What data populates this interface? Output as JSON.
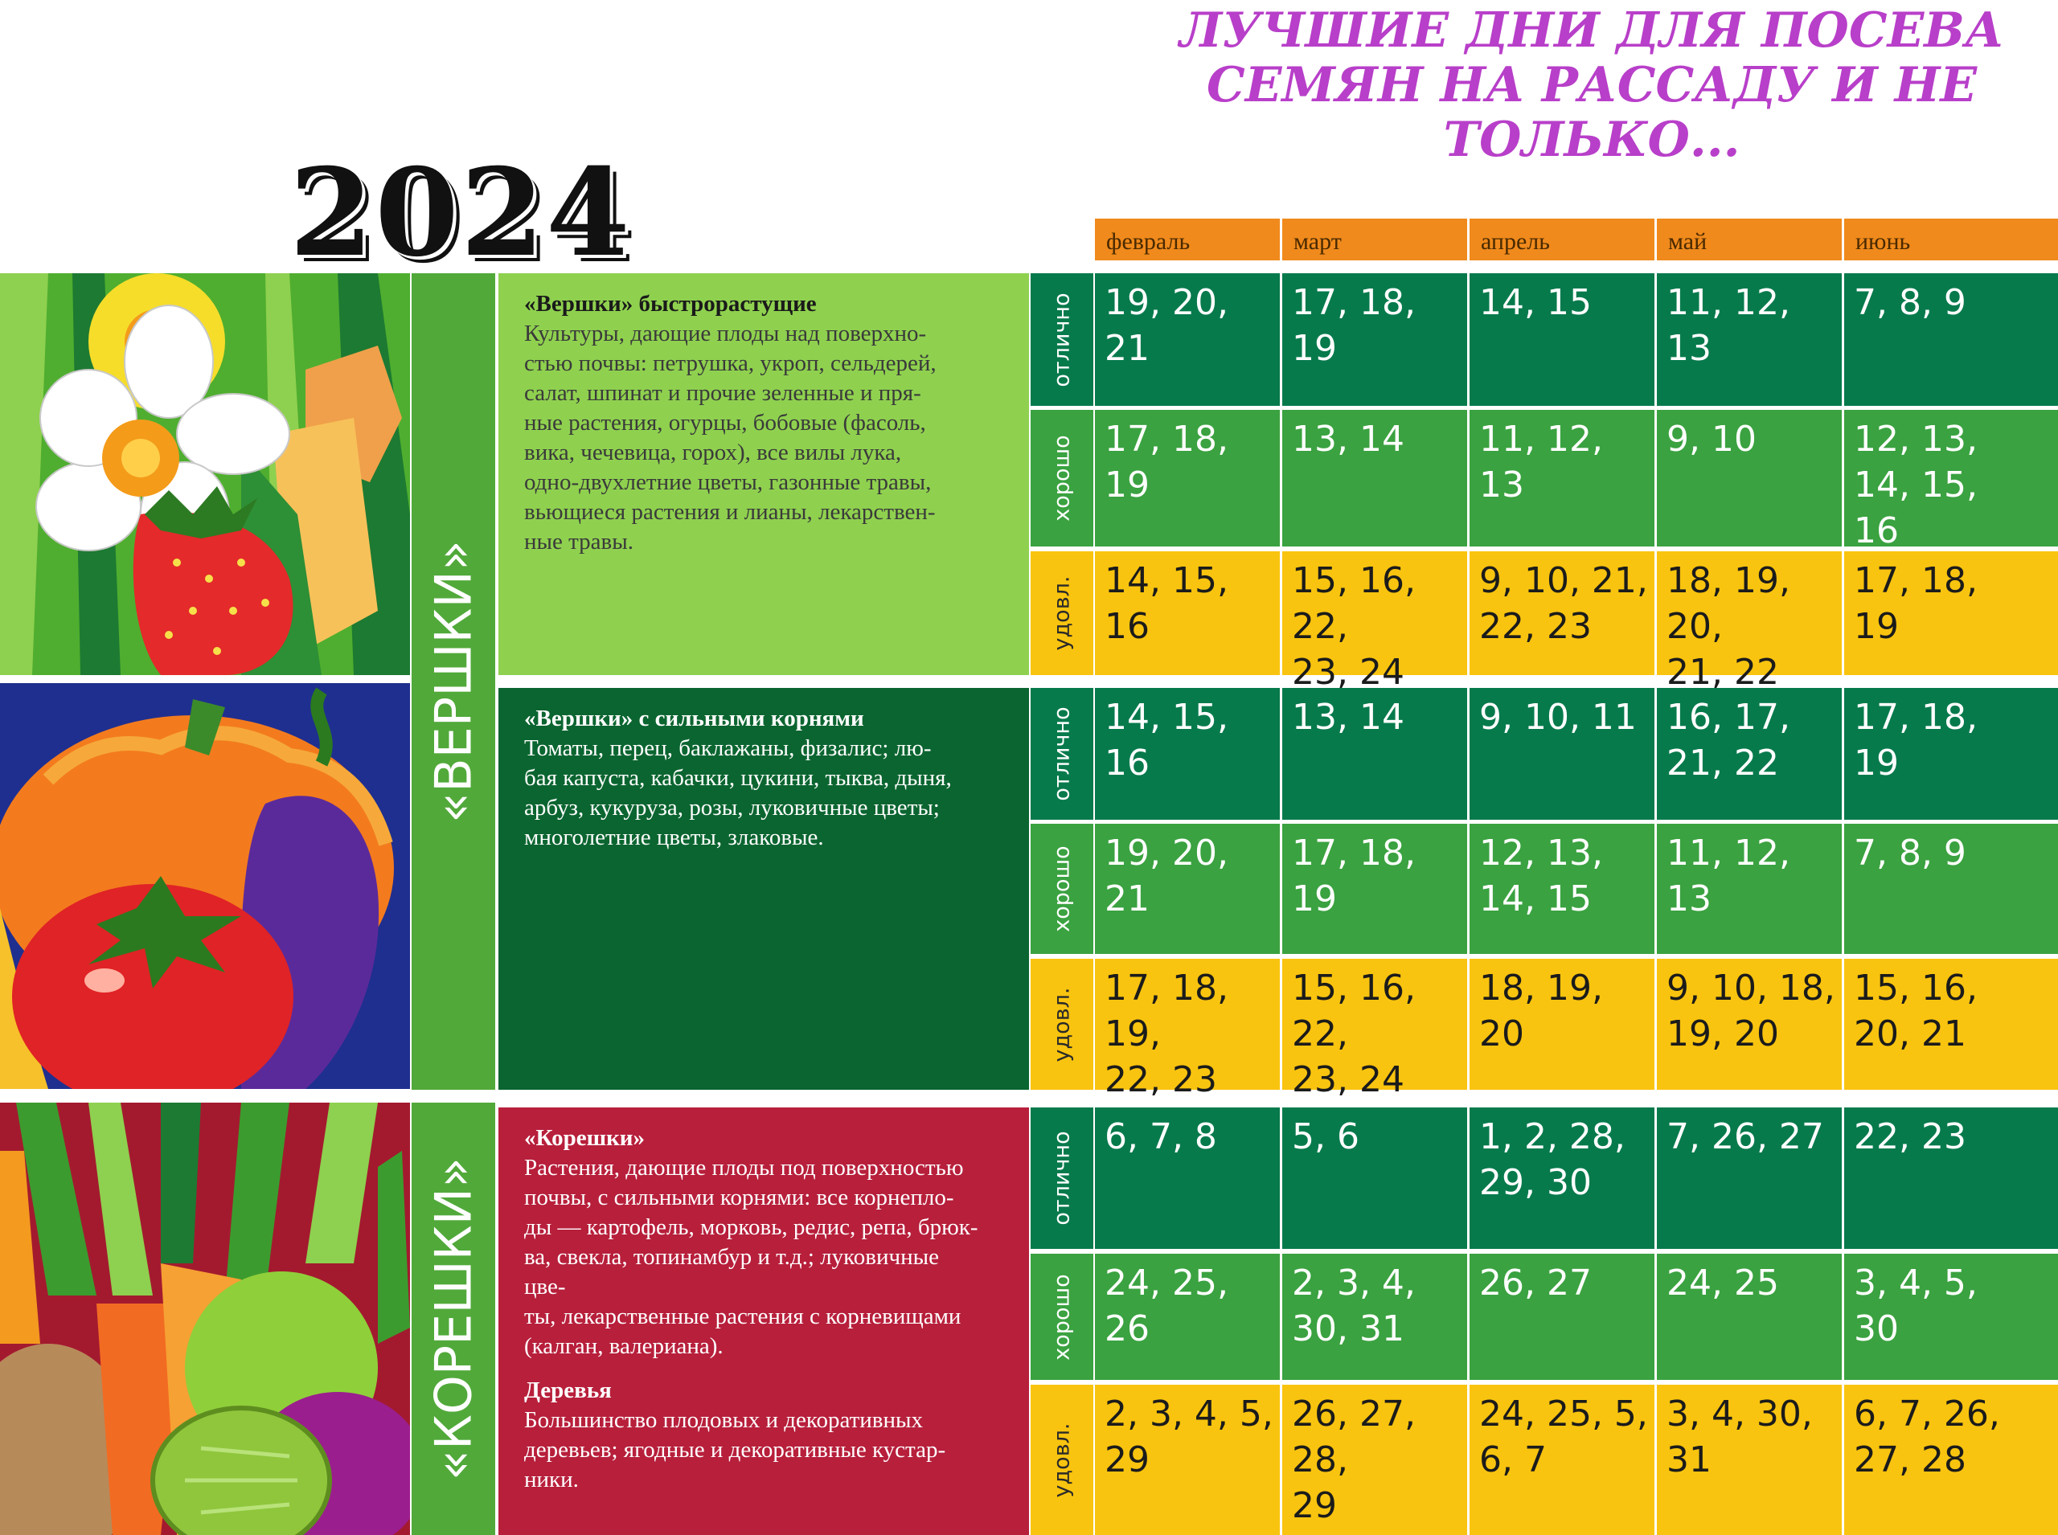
{
  "title": [
    "ЛУЧШИЕ ДНИ ДЛЯ ПОСЕВА",
    "СЕМЯН НА РАССАДУ И НЕ",
    "ТОЛЬКО..."
  ],
  "year": "2024",
  "months": [
    "февраль",
    "март",
    "апрель",
    "май",
    "июнь"
  ],
  "ratings": [
    "отлично",
    "хорошо",
    "удовл."
  ],
  "groups": {
    "vershki": "«ВЕРШКИ»",
    "koreshki": "«КОРЕШКИ»"
  },
  "sections": [
    {
      "heading": "«Вершки» быстрорастущие",
      "text": [
        "Культуры, дающие плоды над поверхно-",
        "стью почвы: петрушка, укроп, сельдерей,",
        "салат, шпинат и прочие зеленные и пря-",
        "ные растения, огурцы, бобовые (фасоль,",
        "вика, чечевица, горох), все вилы лука,",
        "одно-двухлетние цветы, газонные травы,",
        "вьющиеся растения и лианы, лекарствен-",
        "ные травы."
      ],
      "rows": [
        [
          "19, 20, 21",
          "17, 18, 19",
          "14, 15",
          "11, 12, 13",
          "7, 8, 9"
        ],
        [
          "17, 18, 19",
          "13, 14",
          "11, 12, 13",
          "9, 10",
          "12, 13, 14, 15, 16"
        ],
        [
          "14, 15, 16",
          "15, 16, 22, 23, 24",
          "9, 10, 21, 22, 23",
          "18, 19, 20, 21, 22",
          "17, 18, 19"
        ]
      ]
    },
    {
      "heading": "«Вершки» с сильными корнями",
      "text": [
        "Томаты, перец, баклажаны, физалис; лю-",
        "бая капуста, кабачки, цукини, тыква, дыня,",
        "арбуз, кукуруза, розы, луковичные цветы;",
        "многолетние цветы, злаковые."
      ],
      "rows": [
        [
          "14, 15, 16",
          "13, 14",
          "9, 10, 11",
          "16, 17, 21, 22",
          "17, 18, 19"
        ],
        [
          "19, 20, 21",
          "17, 18, 19",
          "12, 13, 14, 15",
          "11, 12, 13",
          "7, 8, 9"
        ],
        [
          "17, 18, 19, 22, 23",
          "15, 16, 22, 23, 24",
          "18, 19, 20",
          "9, 10, 18, 19, 20",
          "15, 16, 20, 21"
        ]
      ]
    },
    {
      "heading": "«Корешки»",
      "text": [
        "Растения, дающие плоды под поверхностью",
        "почвы, с сильными корнями: все корнепло-",
        "ды — картофель, морковь, редис, репа, брюк-",
        "ва, свекла, топинамбур и т.д.; луковичные цве-",
        "ты, лекарственные растения с корневищами",
        "(калган, валериана)."
      ],
      "heading2": "Деревья",
      "text2": [
        "Большинство плодовых и декоративных",
        "деревьев; ягодные и декоративные кустар-",
        "ники."
      ],
      "rows": [
        [
          "6, 7, 8",
          "5, 6",
          "1, 2, 28, 29, 30",
          "7, 26, 27",
          "22, 23"
        ],
        [
          "24, 25, 26",
          "2, 3, 4, 30, 31",
          "26, 27",
          "24, 25",
          "3, 4, 5, 30"
        ],
        [
          "2, 3, 4, 5, 29",
          "26, 27, 28, 29",
          "24, 25, 5, 6, 7",
          "3, 4, 30, 31",
          "6, 7, 26, 27, 28"
        ]
      ]
    }
  ],
  "cell_lines": [
    [
      [
        "19, 20,",
        "21"
      ],
      [
        "17, 18,",
        "19"
      ],
      [
        "14, 15"
      ],
      [
        "11, 12,",
        "13"
      ],
      [
        "7, 8, 9"
      ]
    ],
    [
      [
        "17, 18,",
        "19"
      ],
      [
        "13, 14"
      ],
      [
        "11, 12,",
        "13"
      ],
      [
        "9, 10"
      ],
      [
        "12, 13,",
        "14, 15,",
        "16"
      ]
    ],
    [
      [
        "14, 15, 16"
      ],
      [
        "15, 16, 22,",
        "23, 24"
      ],
      [
        "9, 10, 21,",
        "22, 23"
      ],
      [
        "18, 19, 20,",
        "21, 22"
      ],
      [
        "17, 18,",
        "19"
      ]
    ],
    [
      [
        "14, 15, 16"
      ],
      [
        "13, 14"
      ],
      [
        "9, 10, 11"
      ],
      [
        "16, 17,",
        "21, 22"
      ],
      [
        "17, 18,",
        "19"
      ]
    ],
    [
      [
        "19, 20, 21"
      ],
      [
        "17, 18, 19"
      ],
      [
        "12, 13,",
        "14, 15"
      ],
      [
        "11, 12, 13"
      ],
      [
        "7, 8, 9"
      ]
    ],
    [
      [
        "17, 18, 19,",
        "22, 23"
      ],
      [
        "15, 16, 22,",
        "23, 24"
      ],
      [
        "18, 19, 20"
      ],
      [
        "9, 10, 18,",
        "19, 20"
      ],
      [
        "15, 16,",
        "20, 21"
      ]
    ],
    [
      [
        "6, 7, 8"
      ],
      [
        "5, 6"
      ],
      [
        "1, 2, 28,",
        "29, 30"
      ],
      [
        "7, 26, 27"
      ],
      [
        "22, 23"
      ]
    ],
    [
      [
        "24, 25,",
        "26"
      ],
      [
        "2, 3, 4,",
        "30, 31"
      ],
      [
        "26, 27"
      ],
      [
        "24, 25"
      ],
      [
        "3, 4, 5,",
        "30"
      ]
    ],
    [
      [
        "2, 3, 4, 5,",
        "29"
      ],
      [
        "26, 27, 28,",
        "29"
      ],
      [
        "24, 25, 5,",
        "6, 7"
      ],
      [
        "3, 4, 30,",
        "31"
      ],
      [
        "6, 7, 26,",
        "27, 28"
      ]
    ]
  ],
  "colors": {
    "title": "#b83fc9",
    "month_header": "#f08a1c",
    "excellent": "#077a4c",
    "good": "#3aa240",
    "satisfactory": "#f9c40f",
    "section1_bg": "#8fd14f",
    "section2_bg": "#0b6530",
    "section3_bg": "#b71f3b",
    "group_band": "#51a93a"
  },
  "images": [
    "daffodil-strawberry-illustration",
    "pumpkin-tomato-eggplant-illustration",
    "carrot-apple-potato-illustration"
  ]
}
